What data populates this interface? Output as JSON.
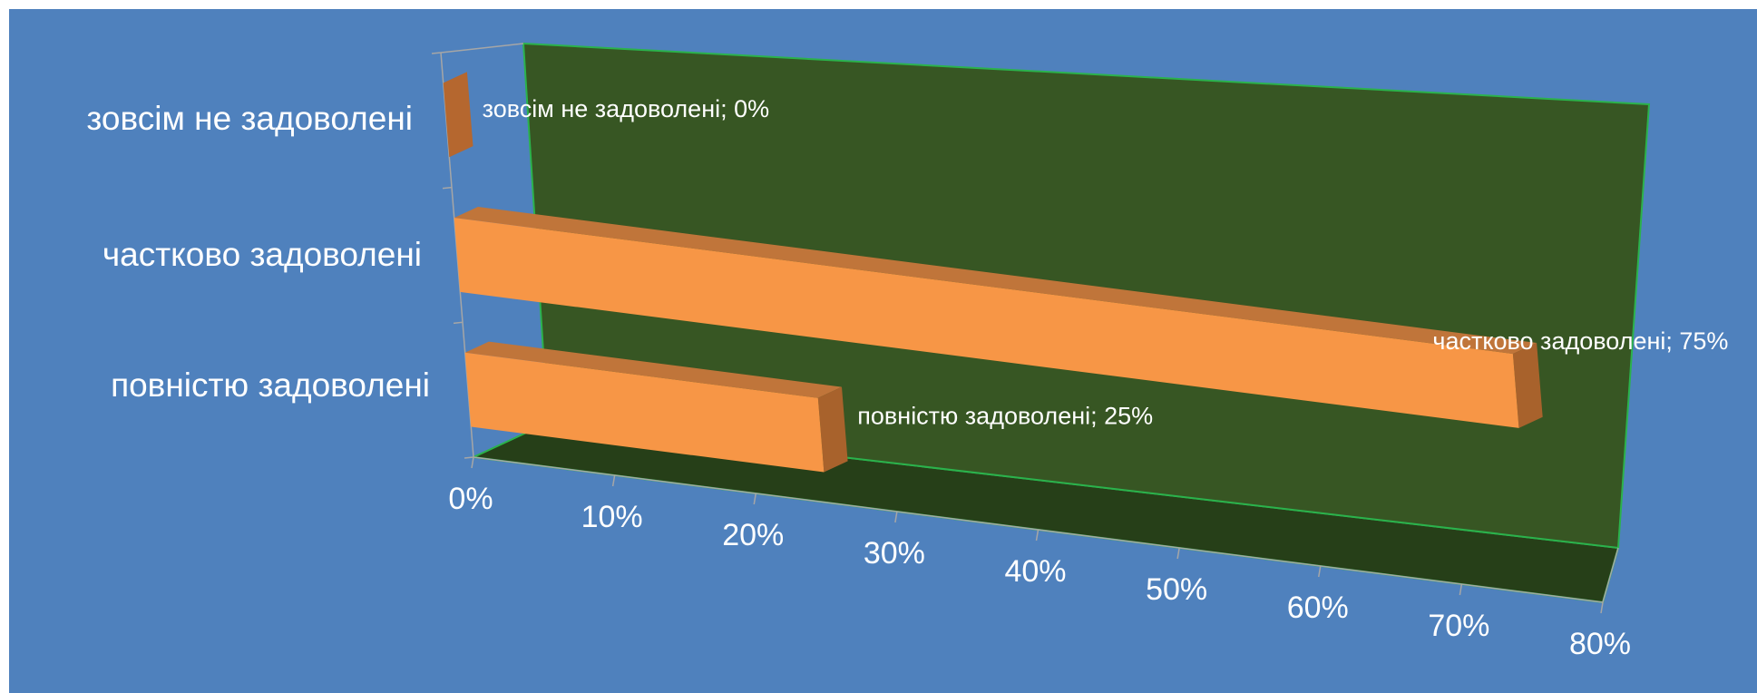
{
  "chart_data": {
    "type": "bar",
    "orientation": "horizontal",
    "style": "3d",
    "categories": [
      "зовсім не задоволені",
      "частково задоволені",
      "повністю задоволені"
    ],
    "values": [
      0,
      75,
      25
    ],
    "data_labels": [
      "зовсім не задоволені; 0%",
      "частково задоволені; 75%",
      "повністю задоволені; 25%"
    ],
    "x_ticks": [
      "0%",
      "10%",
      "20%",
      "30%",
      "40%",
      "50%",
      "60%",
      "70%",
      "80%"
    ],
    "xlim": [
      0,
      80
    ],
    "unit": "%",
    "title": "",
    "xlabel": "",
    "ylabel": "",
    "legend": "none",
    "grid": false,
    "colors": {
      "background": "#4f81bd",
      "back_wall": "#375623",
      "floor": "#263f18",
      "wall_edge": "#2bb24c",
      "bar_front": "#f79646",
      "bar_top": "#c0753a",
      "bar_side": "#a8622c",
      "zero_bar": "#b5672f",
      "text": "#ffffff",
      "axis_line": "#a6a6a6"
    }
  }
}
